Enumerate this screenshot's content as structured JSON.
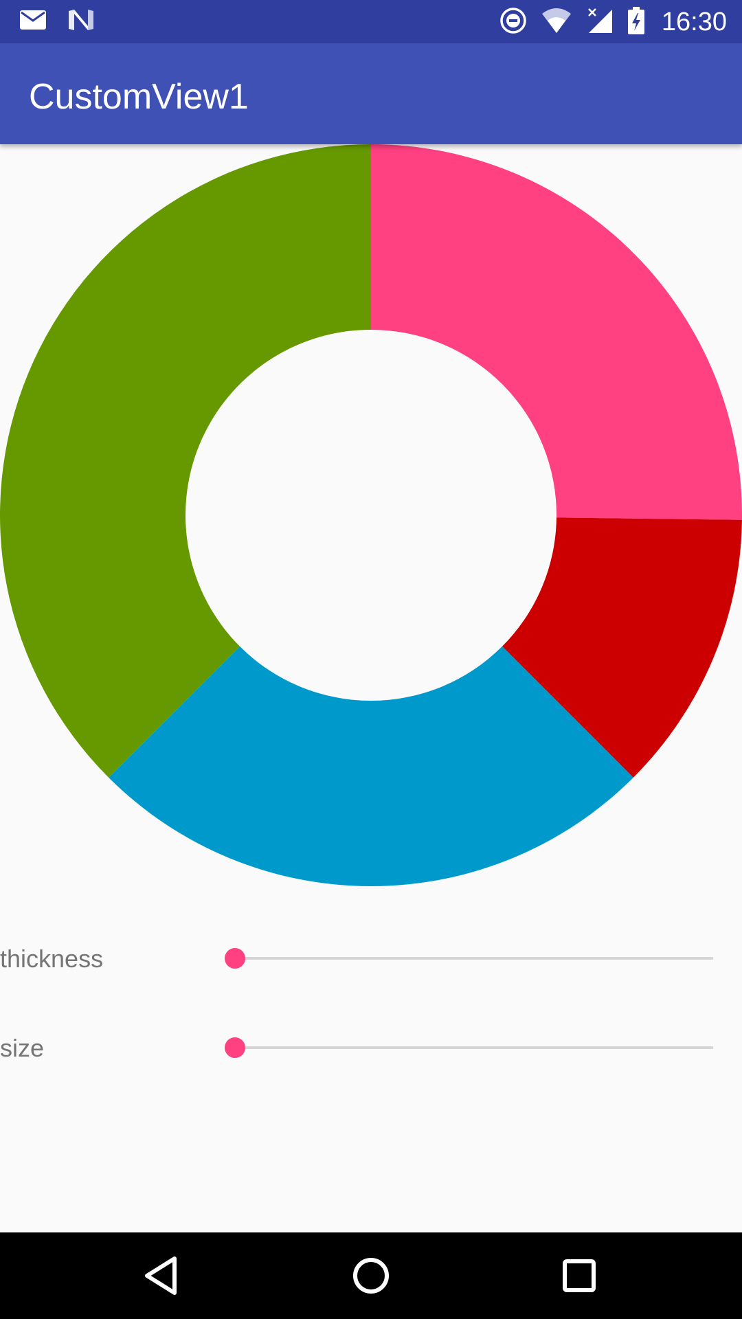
{
  "status_bar": {
    "time": "16:30",
    "left_icons": [
      "mail-icon",
      "n-logo-icon"
    ],
    "right_icons": [
      "do-not-disturb-icon",
      "wifi-icon",
      "cell-signal-no-data-icon",
      "battery-charging-icon"
    ]
  },
  "app_bar": {
    "title": "CustomView1",
    "color": "#3f51b5",
    "status_color": "#303f9f"
  },
  "chart_data": {
    "type": "pie",
    "style": "donut",
    "start_angle_deg": -90,
    "direction": "clockwise",
    "slices": [
      {
        "value": 25.2,
        "color": "#ff4081"
      },
      {
        "value": 12.3,
        "color": "#cc0000"
      },
      {
        "value": 25.0,
        "color": "#0099cc"
      },
      {
        "value": 37.5,
        "color": "#669900"
      }
    ],
    "inner_radius_ratio": 0.5
  },
  "controls": {
    "thickness": {
      "label": "thickness",
      "value_fraction": 0.0
    },
    "size": {
      "label": "size",
      "value_fraction": 0.0
    },
    "accent_color": "#ff4081"
  },
  "nav_bar": {
    "buttons": [
      "back-icon",
      "home-icon",
      "recents-icon"
    ]
  }
}
